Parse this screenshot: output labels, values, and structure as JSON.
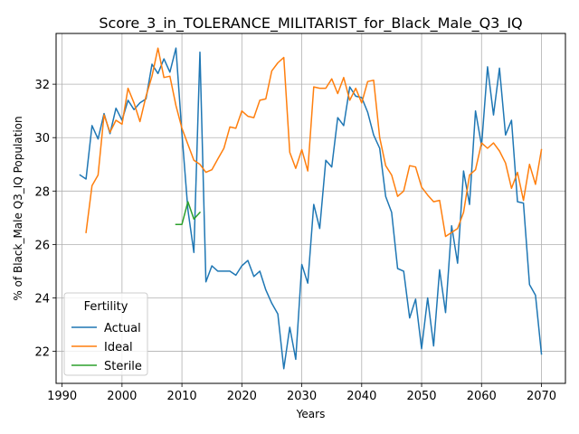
{
  "chart_data": {
    "type": "line",
    "title": "Score_3_in_TOLERANCE_MILITARIST_for_Black_Male_Q3_IQ",
    "xlabel": "Years",
    "ylabel": "% of Black_Male Q3_IQ Population",
    "xlim": [
      1989,
      2074
    ],
    "ylim": [
      20.8,
      33.9
    ],
    "xticks": [
      1990,
      2000,
      2010,
      2020,
      2030,
      2040,
      2050,
      2060,
      2070
    ],
    "yticks": [
      22,
      24,
      26,
      28,
      30,
      32
    ],
    "grid": true,
    "legend": {
      "title": "Fertility",
      "position": "lower-left"
    },
    "series": [
      {
        "name": "Actual",
        "color": "#1f77b4",
        "x": [
          1993,
          1994,
          1995,
          1996,
          1997,
          1998,
          1999,
          2000,
          2001,
          2002,
          2003,
          2004,
          2005,
          2006,
          2007,
          2008,
          2009,
          2010,
          2011,
          2012,
          2013,
          2014,
          2015,
          2016,
          2017,
          2018,
          2019,
          2020,
          2021,
          2022,
          2023,
          2024,
          2025,
          2026,
          2027,
          2028,
          2029,
          2030,
          2031,
          2032,
          2033,
          2034,
          2035,
          2036,
          2037,
          2038,
          2039,
          2040,
          2041,
          2042,
          2043,
          2044,
          2045,
          2046,
          2047,
          2048,
          2049,
          2050,
          2051,
          2052,
          2053,
          2054,
          2055,
          2056,
          2057,
          2058,
          2059,
          2060,
          2061,
          2062,
          2063,
          2064,
          2065,
          2066,
          2067,
          2068,
          2069,
          2070
        ],
        "values": [
          28.6,
          28.45,
          30.45,
          29.95,
          30.9,
          30.15,
          31.1,
          30.65,
          31.4,
          31.05,
          31.3,
          31.45,
          32.75,
          32.4,
          32.95,
          32.45,
          33.35,
          30.15,
          27.3,
          25.7,
          33.2,
          24.6,
          25.2,
          25.0,
          25.0,
          25.0,
          24.85,
          25.2,
          25.4,
          24.8,
          25.0,
          24.3,
          23.8,
          23.4,
          21.35,
          22.9,
          21.7,
          25.25,
          24.55,
          27.5,
          26.6,
          29.15,
          28.9,
          30.75,
          30.45,
          31.9,
          31.55,
          31.5,
          30.95,
          30.1,
          29.6,
          27.8,
          27.2,
          25.1,
          25.0,
          23.25,
          23.95,
          22.1,
          24.0,
          22.2,
          25.05,
          23.45,
          26.7,
          25.3,
          28.75,
          27.5,
          31.0,
          29.7,
          32.65,
          30.85,
          32.6,
          30.1,
          30.65,
          27.6,
          27.55,
          24.5,
          24.1,
          21.9
        ]
      },
      {
        "name": "Ideal",
        "color": "#ff7f0e",
        "x": [
          1994,
          1995,
          1996,
          1997,
          1998,
          1999,
          2000,
          2001,
          2002,
          2003,
          2004,
          2005,
          2006,
          2007,
          2008,
          2009,
          2010,
          2011,
          2012,
          2013,
          2014,
          2015,
          2016,
          2017,
          2018,
          2019,
          2020,
          2021,
          2022,
          2023,
          2024,
          2025,
          2026,
          2027,
          2028,
          2029,
          2030,
          2031,
          2032,
          2033,
          2034,
          2035,
          2036,
          2037,
          2038,
          2039,
          2040,
          2041,
          2042,
          2043,
          2044,
          2045,
          2046,
          2047,
          2048,
          2049,
          2050,
          2051,
          2052,
          2053,
          2054,
          2055,
          2056,
          2057,
          2058,
          2059,
          2060,
          2061,
          2062,
          2063,
          2064,
          2065,
          2066,
          2067,
          2068,
          2069,
          2070
        ],
        "values": [
          26.45,
          28.2,
          28.6,
          30.85,
          30.2,
          30.65,
          30.5,
          31.85,
          31.3,
          30.6,
          31.55,
          32.3,
          33.35,
          32.25,
          32.3,
          31.2,
          30.35,
          29.75,
          29.15,
          29.0,
          28.7,
          28.8,
          29.2,
          29.6,
          30.4,
          30.35,
          31.0,
          30.8,
          30.75,
          31.4,
          31.45,
          32.5,
          32.8,
          33.0,
          29.45,
          28.85,
          29.55,
          28.75,
          31.9,
          31.85,
          31.85,
          32.2,
          31.65,
          32.25,
          31.4,
          31.85,
          31.3,
          32.1,
          32.15,
          30.0,
          28.95,
          28.6,
          27.8,
          28.0,
          28.95,
          28.9,
          28.15,
          27.85,
          27.6,
          27.65,
          26.3,
          26.45,
          26.6,
          27.2,
          28.6,
          28.8,
          29.8,
          29.6,
          29.8,
          29.5,
          29.05,
          28.1,
          28.7,
          27.65,
          29.0,
          28.25,
          29.55
        ]
      },
      {
        "name": "Sterile",
        "color": "#2ca02c",
        "x": [
          2009,
          2010,
          2011,
          2012,
          2013
        ],
        "values": [
          26.75,
          26.75,
          27.6,
          26.95,
          27.2
        ]
      }
    ]
  }
}
